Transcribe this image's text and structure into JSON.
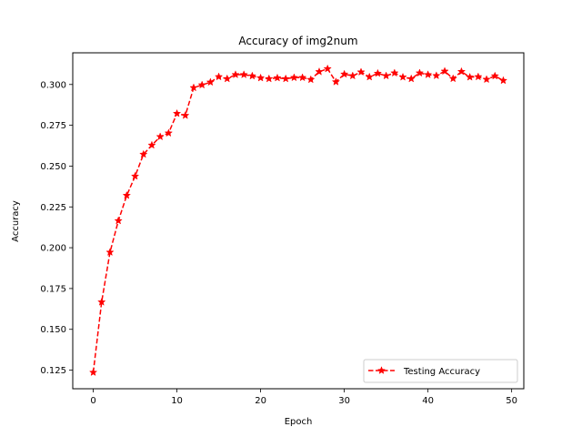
{
  "chart_data": {
    "type": "line",
    "title": "Accuracy of img2num",
    "xlabel": "Epoch",
    "ylabel": "Accuracy",
    "xlim": [
      -2.45,
      51.45
    ],
    "ylim": [
      0.1136,
      0.3194
    ],
    "xticks": [
      0,
      10,
      20,
      30,
      40,
      50
    ],
    "yticks": [
      0.125,
      0.15,
      0.175,
      0.2,
      0.225,
      0.25,
      0.275,
      0.3
    ],
    "xtick_labels": [
      "0",
      "10",
      "20",
      "30",
      "40",
      "50"
    ],
    "ytick_labels": [
      "0.125",
      "0.150",
      "0.175",
      "0.200",
      "0.225",
      "0.250",
      "0.275",
      "0.300"
    ],
    "grid": false,
    "legend_position": "lower-right",
    "series": [
      {
        "name": "Testing Accuracy",
        "color": "#ff0000",
        "line_style": "dashed",
        "marker": "star",
        "x": [
          0,
          1,
          2,
          3,
          4,
          5,
          6,
          7,
          8,
          9,
          10,
          11,
          12,
          13,
          14,
          15,
          16,
          17,
          18,
          19,
          20,
          21,
          22,
          23,
          24,
          25,
          26,
          27,
          28,
          29,
          30,
          31,
          32,
          33,
          34,
          35,
          36,
          37,
          38,
          39,
          40,
          41,
          42,
          43,
          44,
          45,
          46,
          47,
          48,
          49
        ],
        "values": [
          0.1236,
          0.1667,
          0.1972,
          0.2165,
          0.232,
          0.2438,
          0.2572,
          0.2628,
          0.268,
          0.2702,
          0.2822,
          0.281,
          0.298,
          0.2997,
          0.3014,
          0.3047,
          0.3035,
          0.306,
          0.306,
          0.3052,
          0.304,
          0.3035,
          0.304,
          0.3035,
          0.3042,
          0.3042,
          0.303,
          0.3078,
          0.3096,
          0.3016,
          0.3063,
          0.3053,
          0.3076,
          0.3046,
          0.3068,
          0.3053,
          0.307,
          0.3045,
          0.3035,
          0.307,
          0.306,
          0.3054,
          0.3081,
          0.3036,
          0.3079,
          0.3045,
          0.3047,
          0.3031,
          0.3052,
          0.3024
        ]
      }
    ]
  }
}
